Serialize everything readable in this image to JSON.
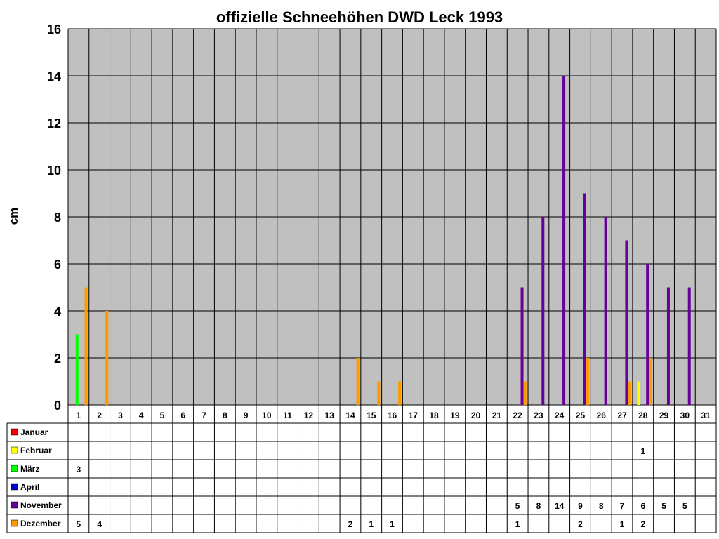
{
  "chart_data": {
    "type": "bar",
    "title": "offizielle Schneehöhen DWD Leck 1993",
    "ylabel": "cm",
    "xlabel": "",
    "ylim": [
      0,
      16
    ],
    "yticks": [
      0,
      2,
      4,
      6,
      8,
      10,
      12,
      14,
      16
    ],
    "categories": [
      "1",
      "2",
      "3",
      "4",
      "5",
      "6",
      "7",
      "8",
      "9",
      "10",
      "11",
      "12",
      "13",
      "14",
      "15",
      "16",
      "17",
      "18",
      "19",
      "20",
      "21",
      "22",
      "23",
      "24",
      "25",
      "26",
      "27",
      "28",
      "29",
      "30",
      "31"
    ],
    "grid": true,
    "legend": "data-table-left",
    "series": [
      {
        "name": "Januar",
        "color": "#ff0000",
        "values": [
          null,
          null,
          null,
          null,
          null,
          null,
          null,
          null,
          null,
          null,
          null,
          null,
          null,
          null,
          null,
          null,
          null,
          null,
          null,
          null,
          null,
          null,
          null,
          null,
          null,
          null,
          null,
          null,
          null,
          null,
          null
        ]
      },
      {
        "name": "Februar",
        "color": "#ffff00",
        "values": [
          null,
          null,
          null,
          null,
          null,
          null,
          null,
          null,
          null,
          null,
          null,
          null,
          null,
          null,
          null,
          null,
          null,
          null,
          null,
          null,
          null,
          null,
          null,
          null,
          null,
          null,
          null,
          1,
          null,
          null,
          null
        ]
      },
      {
        "name": "März",
        "color": "#00ff00",
        "values": [
          3,
          null,
          null,
          null,
          null,
          null,
          null,
          null,
          null,
          null,
          null,
          null,
          null,
          null,
          null,
          null,
          null,
          null,
          null,
          null,
          null,
          null,
          null,
          null,
          null,
          null,
          null,
          null,
          null,
          null,
          null
        ]
      },
      {
        "name": "April",
        "color": "#0000cc",
        "values": [
          null,
          null,
          null,
          null,
          null,
          null,
          null,
          null,
          null,
          null,
          null,
          null,
          null,
          null,
          null,
          null,
          null,
          null,
          null,
          null,
          null,
          null,
          null,
          null,
          null,
          null,
          null,
          null,
          null,
          null,
          null
        ]
      },
      {
        "name": "November",
        "color": "#660099",
        "values": [
          null,
          null,
          null,
          null,
          null,
          null,
          null,
          null,
          null,
          null,
          null,
          null,
          null,
          null,
          null,
          null,
          null,
          null,
          null,
          null,
          null,
          5,
          8,
          14,
          9,
          8,
          7,
          6,
          5,
          5,
          null
        ]
      },
      {
        "name": "Dezember",
        "color": "#ff9900",
        "values": [
          5,
          4,
          null,
          null,
          null,
          null,
          null,
          null,
          null,
          null,
          null,
          null,
          null,
          2,
          1,
          1,
          null,
          null,
          null,
          null,
          null,
          1,
          null,
          null,
          2,
          null,
          1,
          2,
          null,
          null,
          null
        ]
      }
    ]
  },
  "colors": {
    "plot_background": "#c0c0c0",
    "gridline": "#000000"
  }
}
